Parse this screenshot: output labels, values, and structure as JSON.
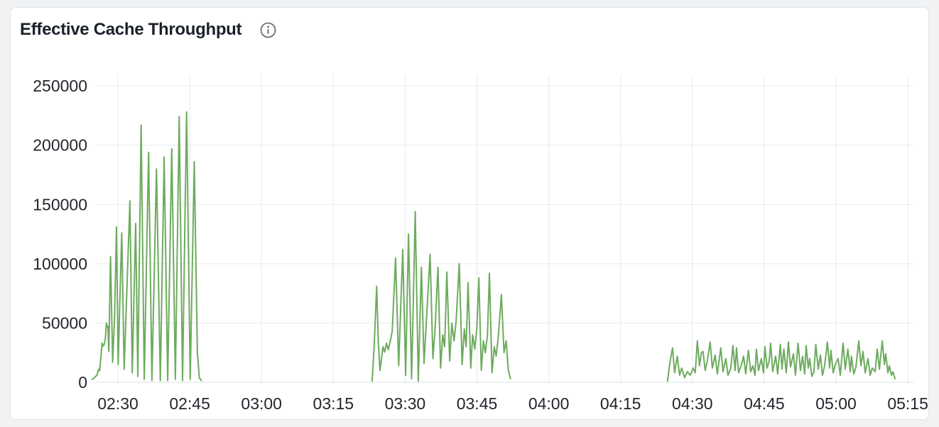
{
  "panel": {
    "title": "Effective Cache Throughput",
    "info_icon": "info-circle"
  },
  "colors": {
    "page_background": "#f0f2f3",
    "card_background": "#ffffff",
    "card_border": "#e1e4e7",
    "title_text": "#1b212b",
    "info_icon": "#6a7077",
    "line": "#6dab5e",
    "grid_line": "#e7e9eb",
    "axis_line": "#dcdfe2",
    "tick_text": "#22262c"
  },
  "chart_data": {
    "type": "line",
    "title": "Effective Cache Throughput",
    "xlabel": "",
    "ylabel": "",
    "legend": "none",
    "grid": true,
    "x_time_format": "HH:MM",
    "x_unit_note": "t = minutes since 00:00",
    "x_domain": [
      145.25,
      316.17
    ],
    "y_domain": [
      0,
      259600
    ],
    "x_ticks": [
      {
        "value": 150,
        "label": "02:30"
      },
      {
        "value": 165,
        "label": "02:45"
      },
      {
        "value": 180,
        "label": "03:00"
      },
      {
        "value": 195,
        "label": "03:15"
      },
      {
        "value": 210,
        "label": "03:30"
      },
      {
        "value": 225,
        "label": "03:45"
      },
      {
        "value": 240,
        "label": "04:00"
      },
      {
        "value": 255,
        "label": "04:15"
      },
      {
        "value": 270,
        "label": "04:30"
      },
      {
        "value": 285,
        "label": "04:45"
      },
      {
        "value": 300,
        "label": "05:00"
      },
      {
        "value": 315,
        "label": "05:15"
      }
    ],
    "y_ticks": [
      {
        "value": 0,
        "label": "0"
      },
      {
        "value": 50000,
        "label": "50000"
      },
      {
        "value": 100000,
        "label": "100000"
      },
      {
        "value": 150000,
        "label": "150000"
      },
      {
        "value": 200000,
        "label": "200000"
      },
      {
        "value": 250000,
        "label": "250000"
      }
    ],
    "series": [
      {
        "name": "effective-cache-throughput",
        "color": "#6dab5e",
        "bursts": [
          [
            [
              144.6,
              2500
            ],
            [
              145.0,
              3500
            ],
            [
              145.6,
              6000
            ],
            [
              146.0,
              11000
            ],
            [
              146.2,
              10000
            ],
            [
              146.4,
              20000
            ],
            [
              146.7,
              33000
            ],
            [
              146.9,
              30500
            ],
            [
              147.1,
              31500
            ],
            [
              147.35,
              36000
            ],
            [
              147.6,
              50000
            ],
            [
              147.75,
              46500
            ],
            [
              147.9,
              47500
            ],
            [
              148.1,
              26000
            ],
            [
              148.45,
              106000
            ],
            [
              148.9,
              17000
            ],
            [
              149.3,
              55000
            ],
            [
              149.7,
              131000
            ],
            [
              150.05,
              15000
            ],
            [
              150.4,
              68000
            ],
            [
              150.8,
              126000
            ],
            [
              151.3,
              11000
            ],
            [
              152.5,
              153000
            ],
            [
              153.0,
              8000
            ],
            [
              153.7,
              134000
            ],
            [
              154.15,
              5000
            ],
            [
              154.85,
              217000
            ],
            [
              155.5,
              2500
            ],
            [
              156.4,
              194000
            ],
            [
              157.1,
              1500
            ],
            [
              158.05,
              180000
            ],
            [
              158.85,
              1500
            ],
            [
              159.65,
              190000
            ],
            [
              160.4,
              1500
            ],
            [
              161.25,
              197000
            ],
            [
              162.0,
              2500
            ],
            [
              162.8,
              224000
            ],
            [
              163.5,
              1500
            ],
            [
              164.35,
              228000
            ],
            [
              165.1,
              2500
            ],
            [
              165.95,
              186000
            ],
            [
              166.6,
              25000
            ],
            [
              167.0,
              4000
            ],
            [
              167.4,
              1500
            ]
          ],
          [
            [
              203.1,
              1000
            ],
            [
              203.5,
              28000
            ],
            [
              204.05,
              81000
            ],
            [
              204.4,
              33000
            ],
            [
              204.75,
              10000
            ],
            [
              205.1,
              21500
            ],
            [
              205.35,
              30000
            ],
            [
              205.7,
              25500
            ],
            [
              206.1,
              33000
            ],
            [
              206.45,
              27500
            ],
            [
              206.85,
              34000
            ],
            [
              207.3,
              43000
            ],
            [
              208.0,
              105000
            ],
            [
              208.65,
              14000
            ],
            [
              209.5,
              112000
            ],
            [
              210.1,
              6000
            ],
            [
              210.7,
              125000
            ],
            [
              211.35,
              3000
            ],
            [
              212.1,
              144000
            ],
            [
              212.75,
              1000
            ],
            [
              213.4,
              97000
            ],
            [
              213.95,
              16000
            ],
            [
              215.2,
              108000
            ],
            [
              215.8,
              20000
            ],
            [
              216.25,
              45000
            ],
            [
              216.85,
              97000
            ],
            [
              217.4,
              12000
            ],
            [
              217.85,
              40000
            ],
            [
              218.25,
              30000
            ],
            [
              218.7,
              93000
            ],
            [
              219.3,
              18000
            ],
            [
              219.75,
              50000
            ],
            [
              220.2,
              35000
            ],
            [
              220.65,
              52000
            ],
            [
              221.3,
              100000
            ],
            [
              221.9,
              15000
            ],
            [
              222.35,
              45000
            ],
            [
              222.75,
              30000
            ],
            [
              223.15,
              84000
            ],
            [
              223.7,
              12000
            ],
            [
              224.1,
              40000
            ],
            [
              224.55,
              28000
            ],
            [
              224.95,
              45000
            ],
            [
              225.4,
              88000
            ],
            [
              225.9,
              10000
            ],
            [
              226.35,
              35000
            ],
            [
              226.75,
              25000
            ],
            [
              227.2,
              40000
            ],
            [
              227.6,
              92000
            ],
            [
              228.15,
              8000
            ],
            [
              228.6,
              30000
            ],
            [
              229.0,
              22000
            ],
            [
              229.45,
              38000
            ],
            [
              230.1,
              74000
            ],
            [
              230.65,
              25000
            ],
            [
              231.1,
              35000
            ],
            [
              231.55,
              10000
            ],
            [
              232.0,
              3000
            ]
          ],
          [
            [
              264.8,
              1000
            ],
            [
              265.25,
              15000
            ],
            [
              265.84,
              29000
            ],
            [
              266.29,
              8000
            ],
            [
              266.84,
              22000
            ],
            [
              267.33,
              6000
            ],
            [
              267.77,
              12000
            ],
            [
              268.37,
              4000
            ],
            [
              268.96,
              9000
            ],
            [
              269.55,
              6000
            ],
            [
              270.15,
              12000
            ],
            [
              270.59,
              8000
            ],
            [
              271.04,
              35000
            ],
            [
              271.48,
              14000
            ],
            [
              271.86,
              25000
            ],
            [
              272.23,
              26000
            ],
            [
              272.67,
              10000
            ],
            [
              273.12,
              18000
            ],
            [
              273.71,
              34000
            ],
            [
              274.16,
              12000
            ],
            [
              274.75,
              23000
            ],
            [
              275.2,
              7000
            ],
            [
              275.94,
              29000
            ],
            [
              276.39,
              9000
            ],
            [
              276.98,
              20000
            ],
            [
              277.43,
              6000
            ],
            [
              278.02,
              12000
            ],
            [
              278.47,
              31000
            ],
            [
              278.91,
              10000
            ],
            [
              279.21,
              29000
            ],
            [
              279.66,
              8000
            ],
            [
              280.25,
              15000
            ],
            [
              280.7,
              22000
            ],
            [
              281.14,
              7000
            ],
            [
              281.69,
              27000
            ],
            [
              282.18,
              9000
            ],
            [
              282.63,
              14000
            ],
            [
              283.07,
              6000
            ],
            [
              283.37,
              28000
            ],
            [
              283.81,
              10000
            ],
            [
              284.41,
              20000
            ],
            [
              284.85,
              8000
            ],
            [
              285.15,
              30000
            ],
            [
              285.6,
              12000
            ],
            [
              286.04,
              18000
            ],
            [
              286.34,
              33000
            ],
            [
              286.78,
              9000
            ],
            [
              287.38,
              22000
            ],
            [
              287.82,
              7000
            ],
            [
              288.37,
              32000
            ],
            [
              288.71,
              11000
            ],
            [
              289.11,
              28000
            ],
            [
              289.6,
              8000
            ],
            [
              290.05,
              34000
            ],
            [
              290.49,
              13000
            ],
            [
              291.09,
              24000
            ],
            [
              291.53,
              6000
            ],
            [
              292.08,
              33000
            ],
            [
              292.57,
              10000
            ],
            [
              293.02,
              22000
            ],
            [
              293.46,
              7000
            ],
            [
              293.76,
              31000
            ],
            [
              294.2,
              12000
            ],
            [
              294.5,
              20000
            ],
            [
              294.95,
              5000
            ],
            [
              295.39,
              9000
            ],
            [
              295.79,
              32000
            ],
            [
              296.28,
              11000
            ],
            [
              296.73,
              23000
            ],
            [
              297.17,
              6000
            ],
            [
              297.62,
              14000
            ],
            [
              298.21,
              34000
            ],
            [
              298.66,
              12000
            ],
            [
              298.95,
              27000
            ],
            [
              299.4,
              8000
            ],
            [
              299.85,
              15000
            ],
            [
              300.44,
              20000
            ],
            [
              300.89,
              6000
            ],
            [
              301.48,
              33000
            ],
            [
              301.93,
              11000
            ],
            [
              302.48,
              28000
            ],
            [
              302.97,
              9000
            ],
            [
              303.22,
              22000
            ],
            [
              303.71,
              7000
            ],
            [
              304.16,
              13000
            ],
            [
              304.75,
              35000
            ],
            [
              305.2,
              14000
            ],
            [
              305.64,
              26000
            ],
            [
              306.09,
              8000
            ],
            [
              306.68,
              20000
            ],
            [
              307.13,
              6000
            ],
            [
              307.57,
              12000
            ],
            [
              308.17,
              9000
            ],
            [
              308.61,
              28000
            ],
            [
              309.06,
              11000
            ],
            [
              309.65,
              35000
            ],
            [
              310.1,
              15000
            ],
            [
              310.39,
              24000
            ],
            [
              310.84,
              8000
            ],
            [
              311.14,
              14000
            ],
            [
              311.58,
              6000
            ],
            [
              311.88,
              9000
            ],
            [
              312.32,
              3000
            ]
          ]
        ]
      }
    ]
  }
}
